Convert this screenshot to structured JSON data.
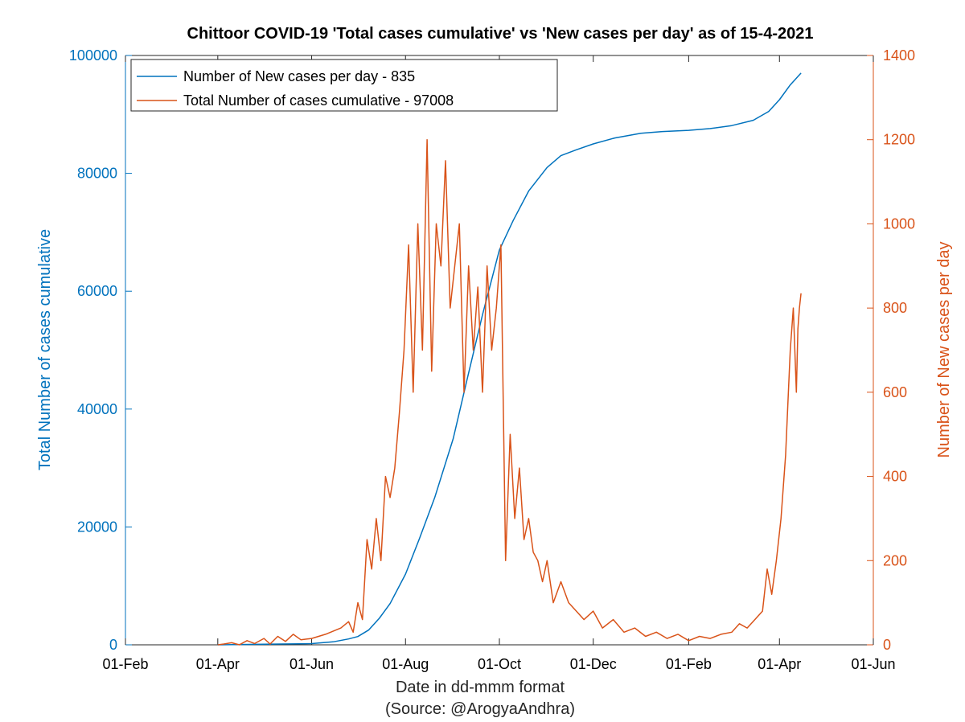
{
  "chart_data": {
    "type": "line",
    "title": "Chittoor COVID-19 'Total cases cumulative' vs 'New cases per day' as of 15-4-2021",
    "xlabel": "Date in dd-mmm format",
    "xlabel_source": "(Source: @ArogyaAndhra)",
    "ylabel_left": "Total Number of cases cumulative",
    "ylabel_right": "Number of New cases per day",
    "x_ticks": [
      "01-Feb",
      "01-Apr",
      "01-Jun",
      "01-Aug",
      "01-Oct",
      "01-Dec",
      "01-Feb",
      "01-Apr",
      "01-Jun"
    ],
    "x_tick_dates": [
      "2020-02-01",
      "2020-04-01",
      "2020-06-01",
      "2020-08-01",
      "2020-10-01",
      "2020-12-01",
      "2021-02-01",
      "2021-04-01",
      "2021-06-01"
    ],
    "xlim": [
      "2020-02-01",
      "2021-06-01"
    ],
    "ylim_left": [
      0,
      100000
    ],
    "yticks_left": [
      "0",
      "20000",
      "40000",
      "60000",
      "80000",
      "100000"
    ],
    "ylim_right": [
      0,
      1400
    ],
    "yticks_right": [
      "0",
      "200",
      "400",
      "600",
      "800",
      "1000",
      "1200",
      "1400"
    ],
    "legend": {
      "placement": "top-left",
      "entries": [
        {
          "label": "Number of New cases per day - 835",
          "color": "#0072BD"
        },
        {
          "label": "Total Number of cases cumulative - 97008",
          "color": "#D95319"
        }
      ]
    },
    "colors": {
      "left_axis": "#0072BD",
      "right_axis": "#D95319"
    },
    "series": [
      {
        "axis": "left",
        "color": "#0072BD",
        "x": [
          "2020-04-01",
          "2020-05-01",
          "2020-06-01",
          "2020-06-15",
          "2020-06-25",
          "2020-07-01",
          "2020-07-08",
          "2020-07-15",
          "2020-07-22",
          "2020-08-01",
          "2020-08-10",
          "2020-08-20",
          "2020-09-01",
          "2020-09-10",
          "2020-09-20",
          "2020-10-01",
          "2020-10-10",
          "2020-10-20",
          "2020-11-01",
          "2020-11-10",
          "2020-11-20",
          "2020-12-01",
          "2020-12-15",
          "2021-01-01",
          "2021-01-15",
          "2021-02-01",
          "2021-02-15",
          "2021-03-01",
          "2021-03-15",
          "2021-03-25",
          "2021-04-01",
          "2021-04-08",
          "2021-04-15"
        ],
        "y": [
          0,
          100,
          200,
          500,
          1000,
          1400,
          2500,
          4500,
          7000,
          12000,
          18000,
          25000,
          35000,
          45000,
          56000,
          67000,
          72000,
          77000,
          81000,
          83000,
          84000,
          85000,
          86000,
          86800,
          87100,
          87300,
          87600,
          88100,
          89000,
          90500,
          92500,
          95000,
          97008
        ]
      },
      {
        "axis": "right",
        "color": "#D95319",
        "x": [
          "2020-04-01",
          "2020-04-05",
          "2020-04-10",
          "2020-04-15",
          "2020-04-20",
          "2020-04-25",
          "2020-05-01",
          "2020-05-05",
          "2020-05-10",
          "2020-05-15",
          "2020-05-20",
          "2020-05-25",
          "2020-06-01",
          "2020-06-10",
          "2020-06-20",
          "2020-06-25",
          "2020-06-28",
          "2020-07-01",
          "2020-07-04",
          "2020-07-07",
          "2020-07-10",
          "2020-07-13",
          "2020-07-16",
          "2020-07-19",
          "2020-07-22",
          "2020-07-25",
          "2020-07-28",
          "2020-07-31",
          "2020-08-03",
          "2020-08-06",
          "2020-08-09",
          "2020-08-12",
          "2020-08-15",
          "2020-08-18",
          "2020-08-21",
          "2020-08-24",
          "2020-08-27",
          "2020-08-30",
          "2020-09-02",
          "2020-09-05",
          "2020-09-08",
          "2020-09-11",
          "2020-09-14",
          "2020-09-17",
          "2020-09-20",
          "2020-09-23",
          "2020-09-26",
          "2020-09-29",
          "2020-10-02",
          "2020-10-05",
          "2020-10-08",
          "2020-10-11",
          "2020-10-14",
          "2020-10-17",
          "2020-10-20",
          "2020-10-23",
          "2020-10-26",
          "2020-10-29",
          "2020-11-01",
          "2020-11-05",
          "2020-11-10",
          "2020-11-15",
          "2020-11-20",
          "2020-11-25",
          "2020-12-01",
          "2020-12-07",
          "2020-12-14",
          "2020-12-21",
          "2020-12-28",
          "2021-01-04",
          "2021-01-11",
          "2021-01-18",
          "2021-01-25",
          "2021-02-01",
          "2021-02-08",
          "2021-02-15",
          "2021-02-22",
          "2021-03-01",
          "2021-03-06",
          "2021-03-11",
          "2021-03-16",
          "2021-03-21",
          "2021-03-24",
          "2021-03-27",
          "2021-03-30",
          "2021-04-02",
          "2021-04-05",
          "2021-04-08",
          "2021-04-10",
          "2021-04-12",
          "2021-04-13",
          "2021-04-14",
          "2021-04-15"
        ],
        "y": [
          0,
          2,
          5,
          0,
          10,
          3,
          15,
          2,
          20,
          8,
          25,
          12,
          15,
          25,
          40,
          55,
          30,
          100,
          60,
          250,
          180,
          300,
          200,
          400,
          350,
          420,
          550,
          700,
          950,
          600,
          1000,
          700,
          1200,
          650,
          1000,
          900,
          1150,
          800,
          900,
          1000,
          600,
          900,
          700,
          850,
          600,
          900,
          700,
          800,
          950,
          200,
          500,
          300,
          420,
          250,
          300,
          220,
          200,
          150,
          200,
          100,
          150,
          100,
          80,
          60,
          80,
          40,
          60,
          30,
          40,
          20,
          30,
          15,
          25,
          10,
          20,
          15,
          25,
          30,
          50,
          40,
          60,
          80,
          180,
          120,
          200,
          300,
          450,
          700,
          800,
          600,
          750,
          800,
          835
        ]
      }
    ]
  }
}
